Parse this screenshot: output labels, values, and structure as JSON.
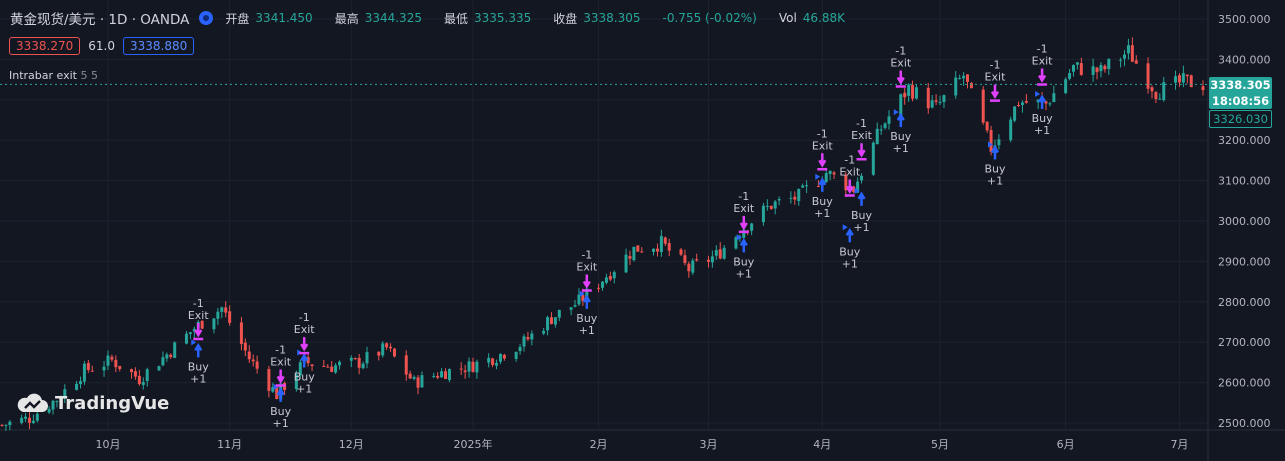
{
  "legend": {
    "title": "黄金现货/美元 · 1D · OANDA",
    "open_label": "开盘",
    "open": "3341.450",
    "high_label": "最高",
    "high": "3344.325",
    "low_label": "最低",
    "low": "3335.335",
    "close_label": "收盘",
    "close": "3338.305",
    "change": "-0.755 (-0.02%)",
    "vol_label": "Vol",
    "vol": "46.88K"
  },
  "inputs": {
    "bid": "3338.270",
    "spread": "61.0",
    "ask": "3338.880"
  },
  "indicator": {
    "name": "Intrabar exit",
    "args": "5 5"
  },
  "brand": "TradingVue",
  "price_tags": {
    "last": "3338.305",
    "countdown": "18:08:56",
    "other": "3326.030"
  },
  "colors": {
    "up": "#26a69a",
    "down": "#ef5350",
    "background": "#131722",
    "buy": "#2962ff",
    "exit": "#e040fb"
  },
  "chart_data": {
    "type": "candlestick",
    "title": "",
    "xlabel": "",
    "ylabel": "",
    "ylim": [
      2490,
      3520
    ],
    "y_ticks": [
      2500,
      2600,
      2700,
      2800,
      2900,
      3000,
      3100,
      3200,
      3300,
      3400,
      3500
    ],
    "y_tick_labels": [
      "2500.000",
      "2600.000",
      "2700.000",
      "2800.000",
      "2900.000",
      "3000.000",
      "3100.000",
      "3200.000",
      "3300.000",
      "3400.000",
      "3500.000"
    ],
    "x_tick_labels": [
      "10月",
      "11月",
      "12月",
      "2025年",
      "2月",
      "3月",
      "4月",
      "5月",
      "6月",
      "7月"
    ],
    "x_ticks": [
      "2024-10-01",
      "2024-11-01",
      "2024-12-02",
      "2025-01-02",
      "2025-02-03",
      "2025-03-03",
      "2025-04-01",
      "2025-05-01",
      "2025-06-02",
      "2025-07-01"
    ],
    "x_range": [
      "2024-09-04",
      "2025-07-07"
    ],
    "closes": [
      [
        "2024-09-04",
        2495
      ],
      [
        "2024-09-11",
        2512
      ],
      [
        "2024-09-18",
        2560
      ],
      [
        "2024-09-25",
        2630
      ],
      [
        "2024-10-02",
        2655
      ],
      [
        "2024-10-09",
        2610
      ],
      [
        "2024-10-16",
        2670
      ],
      [
        "2024-10-23",
        2735
      ],
      [
        "2024-10-30",
        2785
      ],
      [
        "2024-11-06",
        2660
      ],
      [
        "2024-11-13",
        2570
      ],
      [
        "2024-11-20",
        2650
      ],
      [
        "2024-11-27",
        2640
      ],
      [
        "2024-12-04",
        2650
      ],
      [
        "2024-12-11",
        2685
      ],
      [
        "2024-12-18",
        2600
      ],
      [
        "2024-12-25",
        2625
      ],
      [
        "2025-01-01",
        2640
      ],
      [
        "2025-01-08",
        2665
      ],
      [
        "2025-01-15",
        2700
      ],
      [
        "2025-01-22",
        2760
      ],
      [
        "2025-01-29",
        2800
      ],
      [
        "2025-02-05",
        2865
      ],
      [
        "2025-02-12",
        2930
      ],
      [
        "2025-02-19",
        2945
      ],
      [
        "2025-02-26",
        2880
      ],
      [
        "2025-03-05",
        2915
      ],
      [
        "2025-03-12",
        2985
      ],
      [
        "2025-03-19",
        3040
      ],
      [
        "2025-03-26",
        3060
      ],
      [
        "2025-04-02",
        3120
      ],
      [
        "2025-04-09",
        3080
      ],
      [
        "2025-04-16",
        3230
      ],
      [
        "2025-04-23",
        3330
      ],
      [
        "2025-04-30",
        3280
      ],
      [
        "2025-05-07",
        3360
      ],
      [
        "2025-05-14",
        3180
      ],
      [
        "2025-05-21",
        3295
      ],
      [
        "2025-05-28",
        3290
      ],
      [
        "2025-06-04",
        3380
      ],
      [
        "2025-06-11",
        3370
      ],
      [
        "2025-06-18",
        3420
      ],
      [
        "2025-06-25",
        3320
      ],
      [
        "2025-07-02",
        3345
      ],
      [
        "2025-07-07",
        3338
      ]
    ],
    "last_price": 3338.305,
    "signals": [
      {
        "date": "2024-10-24",
        "buy": 2650,
        "exit": 2755
      },
      {
        "date": "2024-11-14",
        "buy": 2540,
        "exit": 2640
      },
      {
        "date": "2024-11-20",
        "buy": 2625,
        "exit": 2720
      },
      {
        "date": "2025-01-31",
        "buy": 2770,
        "exit": 2875
      },
      {
        "date": "2025-03-12",
        "buy": 2910,
        "exit": 3020
      },
      {
        "date": "2025-04-01",
        "buy": 3060,
        "exit": 3175
      },
      {
        "date": "2025-04-08",
        "buy": 2935,
        "exit": 3110
      },
      {
        "date": "2025-04-11",
        "buy": 3025,
        "exit": 3200
      },
      {
        "date": "2025-04-21",
        "buy": 3220,
        "exit": 3380
      },
      {
        "date": "2025-05-15",
        "buy": 3140,
        "exit": 3345
      },
      {
        "date": "2025-05-27",
        "buy": 3265,
        "exit": 3385
      }
    ],
    "signal_labels": {
      "buy": "Buy",
      "buy_qty": "+1",
      "exit": "Exit",
      "exit_qty": "-1"
    }
  }
}
